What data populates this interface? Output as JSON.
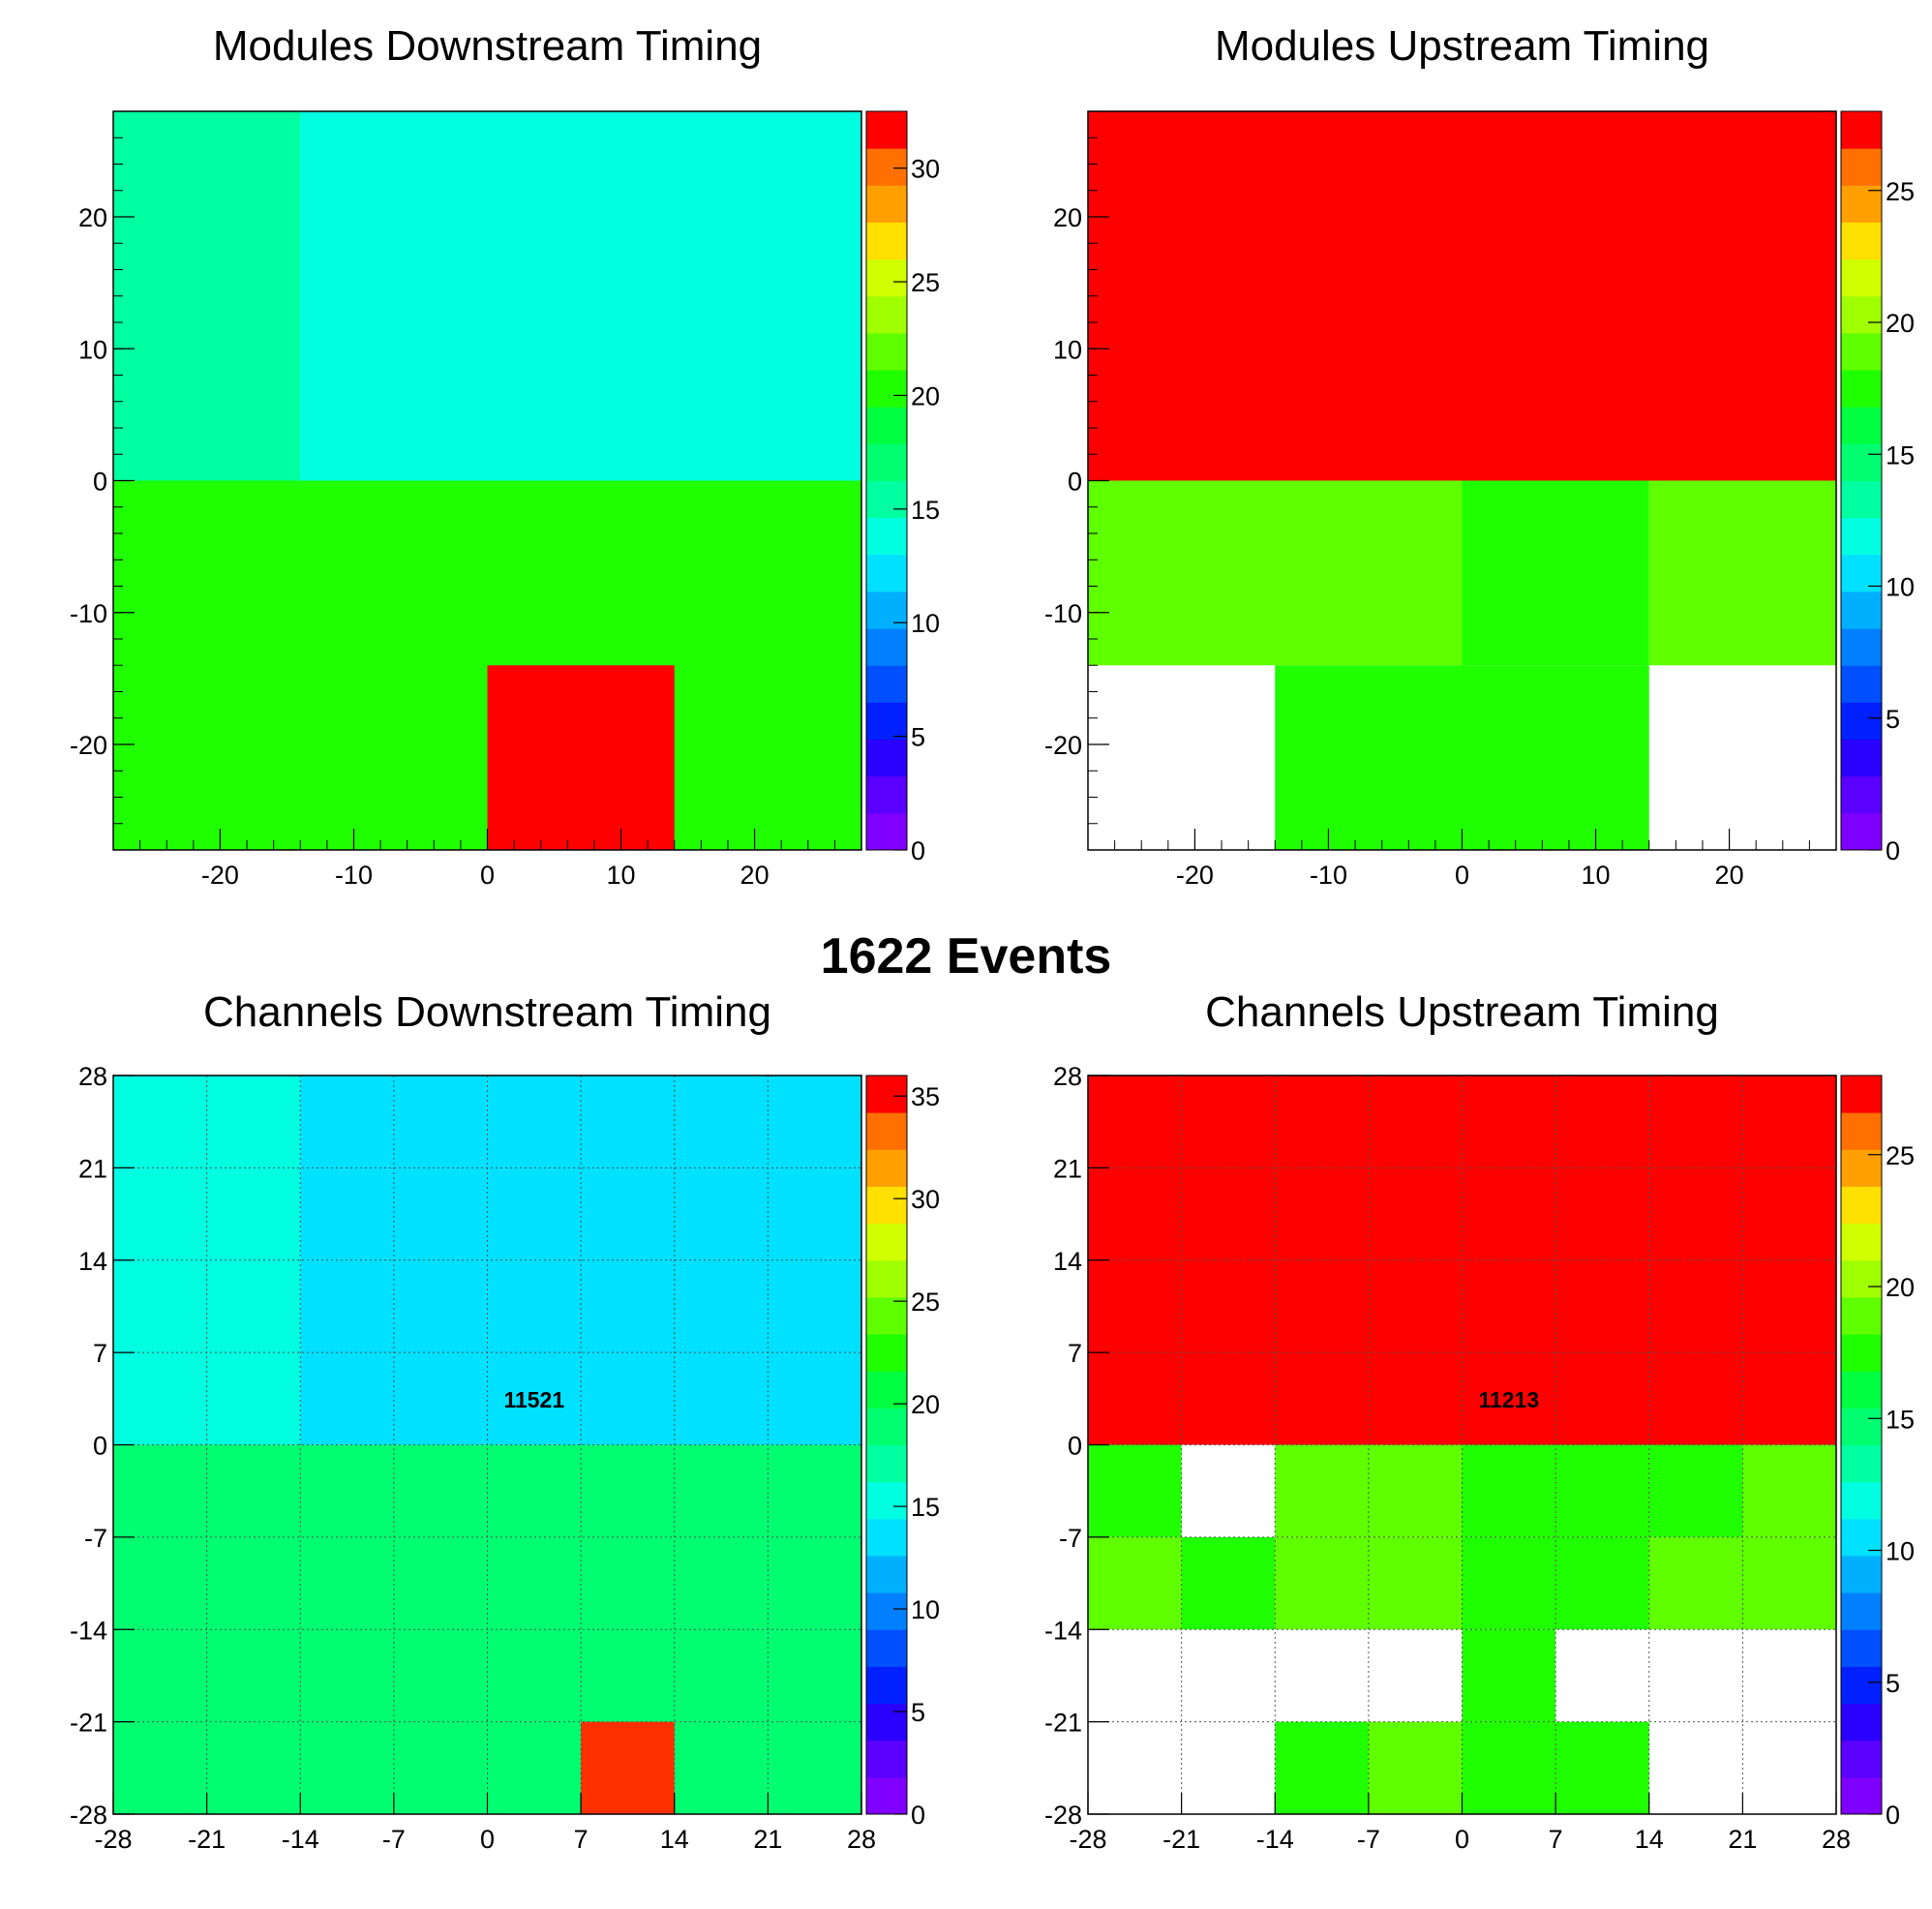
{
  "page": {
    "event_count_label": "1622 Events"
  },
  "chart_data": [
    {
      "type": "heatmap",
      "title": "Modules Downstream Timing",
      "xlabel": "",
      "ylabel": "",
      "xlim": [
        -28,
        28
      ],
      "ylim": [
        -28,
        28
      ],
      "x_ticks": [
        "-20",
        "-10",
        "0",
        "10",
        "20"
      ],
      "y_ticks": [
        "-20",
        "-10",
        "0",
        "10",
        "20"
      ],
      "z_range": [
        0,
        32.5
      ],
      "z_ticks": [
        "0",
        "5",
        "10",
        "15",
        "20",
        "25",
        "30"
      ],
      "grid": false,
      "cells": [
        {
          "x": [
            -28,
            -14
          ],
          "y": [
            0,
            28
          ],
          "value": 15.5
        },
        {
          "x": [
            -14,
            28
          ],
          "y": [
            0,
            28
          ],
          "value": 14.5
        },
        {
          "x": [
            -28,
            28
          ],
          "y": [
            -28,
            0
          ],
          "value": 21
        },
        {
          "x": [
            0,
            14
          ],
          "y": [
            -28,
            -14
          ],
          "value": 32.5
        }
      ],
      "annotation": ""
    },
    {
      "type": "heatmap",
      "title": "Modules Upstream Timing",
      "xlabel": "",
      "ylabel": "",
      "xlim": [
        -28,
        28
      ],
      "ylim": [
        -28,
        28
      ],
      "x_ticks": [
        "-20",
        "-10",
        "0",
        "10",
        "20"
      ],
      "y_ticks": [
        "-20",
        "-10",
        "0",
        "10",
        "20"
      ],
      "z_range": [
        0,
        28
      ],
      "z_ticks": [
        "0",
        "5",
        "10",
        "15",
        "20",
        "25"
      ],
      "grid": false,
      "cells": [
        {
          "x": [
            -28,
            28
          ],
          "y": [
            0,
            28
          ],
          "value": 28
        },
        {
          "x": [
            -28,
            0
          ],
          "y": [
            -14,
            0
          ],
          "value": 19.5
        },
        {
          "x": [
            0,
            14
          ],
          "y": [
            -14,
            0
          ],
          "value": 17.5
        },
        {
          "x": [
            14,
            28
          ],
          "y": [
            -14,
            0
          ],
          "value": 19.5
        },
        {
          "x": [
            -14,
            14
          ],
          "y": [
            -28,
            -14
          ],
          "value": 17.5
        }
      ],
      "annotation": ""
    },
    {
      "type": "heatmap",
      "title": "Channels Downstream Timing",
      "xlabel": "",
      "ylabel": "",
      "xlim": [
        -28,
        28
      ],
      "ylim": [
        -28,
        28
      ],
      "x_ticks": [
        "-28",
        "-21",
        "-14",
        "-7",
        "0",
        "7",
        "14",
        "21",
        "28"
      ],
      "y_ticks": [
        "-28",
        "-21",
        "-14",
        "-7",
        "0",
        "7",
        "14",
        "21",
        "28"
      ],
      "z_range": [
        0,
        36
      ],
      "z_ticks": [
        "0",
        "5",
        "10",
        "15",
        "20",
        "25",
        "30",
        "35"
      ],
      "grid": true,
      "cells": [
        {
          "x": [
            -28,
            -14
          ],
          "y": [
            0,
            28
          ],
          "value": 15.5
        },
        {
          "x": [
            -14,
            28
          ],
          "y": [
            0,
            28
          ],
          "value": 13.5
        },
        {
          "x": [
            -28,
            28
          ],
          "y": [
            -28,
            0
          ],
          "value": 19.5
        },
        {
          "x": [
            7,
            14
          ],
          "y": [
            -28,
            -21
          ],
          "value": 35.5
        }
      ],
      "annotation": "11521"
    },
    {
      "type": "heatmap",
      "title": "Channels Upstream Timing",
      "xlabel": "",
      "ylabel": "",
      "xlim": [
        -28,
        28
      ],
      "ylim": [
        -28,
        28
      ],
      "x_ticks": [
        "-28",
        "-21",
        "-14",
        "-7",
        "0",
        "7",
        "14",
        "21",
        "28"
      ],
      "y_ticks": [
        "-28",
        "-21",
        "-14",
        "-7",
        "0",
        "7",
        "14",
        "21",
        "28"
      ],
      "z_range": [
        0,
        28
      ],
      "z_ticks": [
        "0",
        "5",
        "10",
        "15",
        "20",
        "25"
      ],
      "grid": true,
      "cells": [
        {
          "x": [
            -28,
            28
          ],
          "y": [
            0,
            28
          ],
          "value": 28
        },
        {
          "x": [
            -28,
            -21
          ],
          "y": [
            -7,
            0
          ],
          "value": 17.5
        },
        {
          "x": [
            -14,
            0
          ],
          "y": [
            -7,
            0
          ],
          "value": 19.5
        },
        {
          "x": [
            0,
            14
          ],
          "y": [
            -7,
            0
          ],
          "value": 17.5
        },
        {
          "x": [
            14,
            21
          ],
          "y": [
            -7,
            0
          ],
          "value": 17.5
        },
        {
          "x": [
            21,
            28
          ],
          "y": [
            -7,
            0
          ],
          "value": 18.5
        },
        {
          "x": [
            -28,
            -21
          ],
          "y": [
            -14,
            -7
          ],
          "value": 19.5
        },
        {
          "x": [
            -21,
            -14
          ],
          "y": [
            -14,
            -7
          ],
          "value": 17.5
        },
        {
          "x": [
            -14,
            0
          ],
          "y": [
            -14,
            -7
          ],
          "value": 19.5
        },
        {
          "x": [
            0,
            14
          ],
          "y": [
            -14,
            -7
          ],
          "value": 17.5
        },
        {
          "x": [
            14,
            28
          ],
          "y": [
            -14,
            -7
          ],
          "value": 19.5
        },
        {
          "x": [
            0,
            7
          ],
          "y": [
            -21,
            -14
          ],
          "value": 17.5
        },
        {
          "x": [
            -14,
            -7
          ],
          "y": [
            -28,
            -21
          ],
          "value": 17.5
        },
        {
          "x": [
            -7,
            0
          ],
          "y": [
            -28,
            -21
          ],
          "value": 19.5
        },
        {
          "x": [
            0,
            14
          ],
          "y": [
            -28,
            -21
          ],
          "value": 17.5
        }
      ],
      "annotation": "11213"
    }
  ]
}
